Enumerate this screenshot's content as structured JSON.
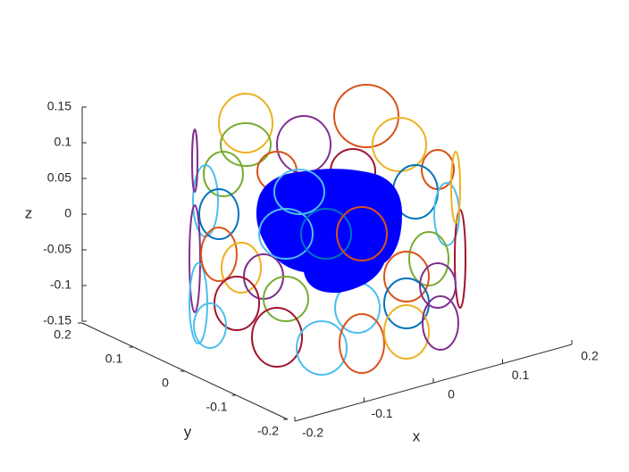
{
  "chart_data": {
    "type": "surface3d",
    "xlabel": "x",
    "ylabel": "y",
    "zlabel": "z",
    "xlim": [
      -0.2,
      0.2
    ],
    "ylim": [
      -0.2,
      0.2
    ],
    "zlim": [
      -0.15,
      0.15
    ],
    "xticks": [
      -0.2,
      -0.1,
      0,
      0.1,
      0.2
    ],
    "yticks": [
      -0.2,
      -0.1,
      0,
      0.1,
      0.2
    ],
    "zticks": [
      -0.15,
      -0.1,
      -0.05,
      0,
      0.05,
      0.1,
      0.15
    ]
  }
}
